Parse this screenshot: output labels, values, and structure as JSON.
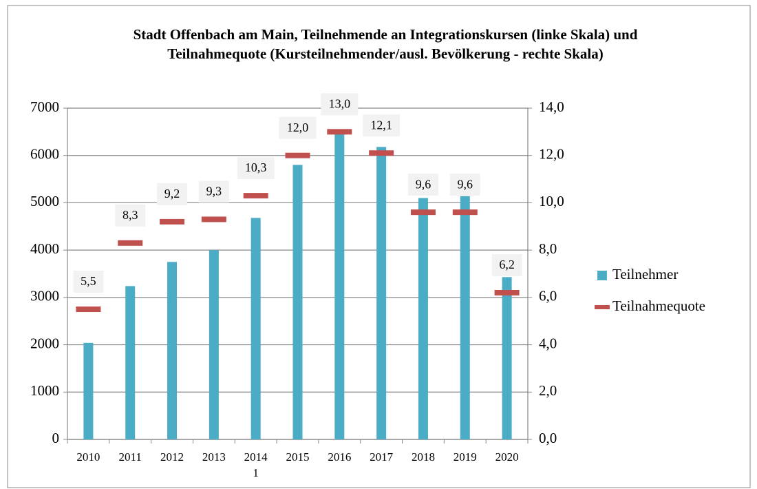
{
  "chart_data": {
    "type": "bar",
    "title": "Stadt Offenbach am Main, Teilnehmende an Integrationskursen (linke Skala) und Teilnahmequote (Kursteilnehmender/ausl. Bevölkerung - rechte Skala)",
    "categories": [
      "2010",
      "2011",
      "2012",
      "2013",
      "2014\n1",
      "2015",
      "2016",
      "2017",
      "2018",
      "2019",
      "2020"
    ],
    "series": [
      {
        "name": "Teilnehmer",
        "type": "bar",
        "color": "#4bacc6",
        "values": [
          2040,
          3240,
          3750,
          4000,
          4680,
          5800,
          6450,
          6180,
          5100,
          5140,
          3430
        ]
      },
      {
        "name": "Teilnahmequote",
        "type": "marker",
        "axis": "y2",
        "color": "#c0504d",
        "values": [
          5.5,
          8.3,
          9.2,
          9.3,
          10.3,
          12.0,
          13.0,
          12.1,
          9.6,
          9.6,
          6.2
        ],
        "value_labels": [
          "5,5",
          "8,3",
          "9,2",
          "9,3",
          "10,3",
          "12,0",
          "13,0",
          "12,1",
          "9,6",
          "9,6",
          "6,2"
        ]
      }
    ],
    "ylim": [
      0,
      7000
    ],
    "yticks": [
      0,
      1000,
      2000,
      3000,
      4000,
      5000,
      6000,
      7000
    ],
    "y2lim": [
      0,
      14
    ],
    "y2ticks": [
      {
        "value": 0,
        "label": "0,0"
      },
      {
        "value": 2,
        "label": "2,0"
      },
      {
        "value": 4,
        "label": "4,0"
      },
      {
        "value": 6,
        "label": "6,0"
      },
      {
        "value": 8,
        "label": "8,0"
      },
      {
        "value": 10,
        "label": "10,0"
      },
      {
        "value": 12,
        "label": "12,0"
      },
      {
        "value": 14,
        "label": "14,0"
      }
    ],
    "grid": true,
    "legend": "right"
  }
}
